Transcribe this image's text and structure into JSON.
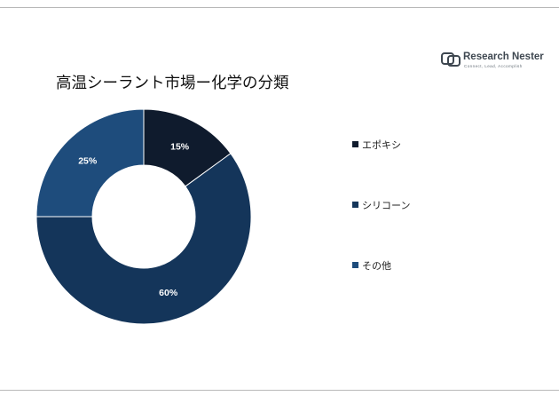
{
  "logo": {
    "name_part1": "Research ",
    "name_part2": "Nester",
    "tagline": "Connect, Lead, Accomplish"
  },
  "chart_data": {
    "type": "pie",
    "title": "高温シーラント市場ー化学の分類",
    "donut": true,
    "legend_position": "right",
    "categories": [
      "エポキシ",
      "シリコーン",
      "その他"
    ],
    "values": [
      15,
      60,
      25
    ],
    "value_labels": [
      "15%",
      "60%",
      "25%"
    ],
    "colors": [
      "#0f1b2d",
      "#14355a",
      "#1e4c7c"
    ],
    "label_color": "#ffffff"
  }
}
